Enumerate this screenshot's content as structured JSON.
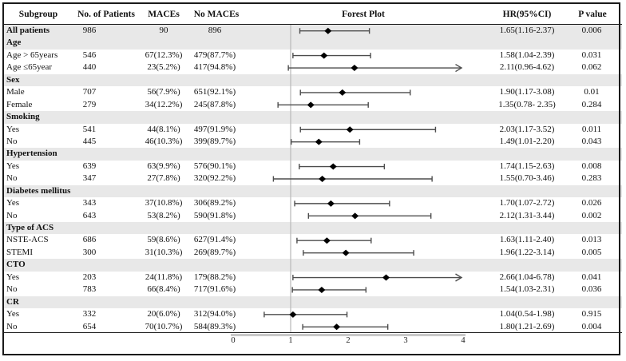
{
  "title_row": {
    "subgroup": "Subgroup",
    "patients": "No. of Patients",
    "maces": "MACEs",
    "no_maces": "No MACEs",
    "forest": "Forest Plot",
    "hr": "HR(95%CI)",
    "p": "P value"
  },
  "colors": {
    "shaded_row": "#e8e8e8",
    "whisker": "#4d4d4d",
    "marker": "#000000",
    "reference_line": "#b8b8b8",
    "axis_line": "#c9c9c9",
    "border": "#1a1a1a"
  },
  "chart_data": {
    "type": "forest",
    "title": "Forest Plot",
    "x_axis": {
      "ticks": [
        "0",
        "1",
        "2",
        "3",
        "4"
      ],
      "range": [
        0,
        4
      ],
      "reference_value": 1,
      "grid": false
    },
    "rows": [
      {
        "category": false,
        "shaded": true,
        "bold": true,
        "label": "All patients",
        "patients": "986",
        "maces": "90",
        "no_maces": "896",
        "hr_text": "1.65(1.16-2.37)",
        "p": "0.006",
        "est": 1.65,
        "lo": 1.16,
        "hi": 2.37,
        "arrow": false
      },
      {
        "category": true,
        "shaded": true,
        "bold": true,
        "label": "Age"
      },
      {
        "category": false,
        "shaded": false,
        "bold": false,
        "label": "Age > 65years",
        "patients": "546",
        "maces": "67(12.3%)",
        "no_maces": "479(87.7%)",
        "hr_text": "1.58(1.04-2.39)",
        "p": "0.031",
        "est": 1.58,
        "lo": 1.04,
        "hi": 2.39,
        "arrow": false
      },
      {
        "category": false,
        "shaded": false,
        "bold": false,
        "label": "Age ≤65year",
        "patients": "440",
        "maces": "23(5.2%)",
        "no_maces": "417(94.8%)",
        "hr_text": "2.11(0.96-4.62)",
        "p": "0.062",
        "est": 2.11,
        "lo": 0.96,
        "hi": 4.62,
        "arrow": true
      },
      {
        "category": true,
        "shaded": true,
        "bold": true,
        "label": "Sex"
      },
      {
        "category": false,
        "shaded": false,
        "bold": false,
        "label": "Male",
        "patients": "707",
        "maces": "56(7.9%)",
        "no_maces": "651(92.1%)",
        "hr_text": "1.90(1.17-3.08)",
        "p": "0.01",
        "est": 1.9,
        "lo": 1.17,
        "hi": 3.08,
        "arrow": false
      },
      {
        "category": false,
        "shaded": false,
        "bold": false,
        "label": "Female",
        "patients": "279",
        "maces": "34(12.2%)",
        "no_maces": "245(87.8%)",
        "hr_text": "1.35(0.78- 2.35)",
        "p": "0.284",
        "est": 1.35,
        "lo": 0.78,
        "hi": 2.35,
        "arrow": false
      },
      {
        "category": true,
        "shaded": true,
        "bold": true,
        "label": "Smoking"
      },
      {
        "category": false,
        "shaded": false,
        "bold": false,
        "label": "Yes",
        "patients": "541",
        "maces": "44(8.1%)",
        "no_maces": "497(91.9%)",
        "hr_text": "2.03(1.17-3.52)",
        "p": "0.011",
        "est": 2.03,
        "lo": 1.17,
        "hi": 3.52,
        "arrow": false
      },
      {
        "category": false,
        "shaded": false,
        "bold": false,
        "label": "No",
        "patients": "445",
        "maces": "46(10.3%)",
        "no_maces": "399(89.7%)",
        "hr_text": "1.49(1.01-2.20)",
        "p": "0.043",
        "est": 1.49,
        "lo": 1.01,
        "hi": 2.2,
        "arrow": false
      },
      {
        "category": true,
        "shaded": true,
        "bold": true,
        "label": "Hypertension"
      },
      {
        "category": false,
        "shaded": false,
        "bold": false,
        "label": "Yes",
        "patients": "639",
        "maces": "63(9.9%)",
        "no_maces": "576(90.1%)",
        "hr_text": "1.74(1.15-2.63)",
        "p": "0.008",
        "est": 1.74,
        "lo": 1.15,
        "hi": 2.63,
        "arrow": false
      },
      {
        "category": false,
        "shaded": false,
        "bold": false,
        "label": "No",
        "patients": "347",
        "maces": "27(7.8%)",
        "no_maces": "320(92.2%)",
        "hr_text": "1.55(0.70-3.46)",
        "p": "0.283",
        "est": 1.55,
        "lo": 0.7,
        "hi": 3.46,
        "arrow": false
      },
      {
        "category": true,
        "shaded": true,
        "bold": true,
        "label": "Diabetes mellitus"
      },
      {
        "category": false,
        "shaded": false,
        "bold": false,
        "label": "Yes",
        "patients": "343",
        "maces": "37(10.8%)",
        "no_maces": "306(89.2%)",
        "hr_text": "1.70(1.07-2.72)",
        "p": "0.026",
        "est": 1.7,
        "lo": 1.07,
        "hi": 2.72,
        "arrow": false
      },
      {
        "category": false,
        "shaded": false,
        "bold": false,
        "label": "No",
        "patients": "643",
        "maces": "53(8.2%)",
        "no_maces": "590(91.8%)",
        "hr_text": "2.12(1.31-3.44)",
        "p": "0.002",
        "est": 2.12,
        "lo": 1.31,
        "hi": 3.44,
        "arrow": false
      },
      {
        "category": true,
        "shaded": true,
        "bold": true,
        "label": "Type of ACS"
      },
      {
        "category": false,
        "shaded": false,
        "bold": false,
        "label": "NSTE-ACS",
        "patients": "686",
        "maces": "59(8.6%)",
        "no_maces": "627(91.4%)",
        "hr_text": "1.63(1.11-2.40)",
        "p": "0.013",
        "est": 1.63,
        "lo": 1.11,
        "hi": 2.4,
        "arrow": false
      },
      {
        "category": false,
        "shaded": false,
        "bold": false,
        "label": "STEMI",
        "patients": "300",
        "maces": "31(10.3%)",
        "no_maces": "269(89.7%)",
        "hr_text": "1.96(1.22-3.14)",
        "p": "0.005",
        "est": 1.96,
        "lo": 1.22,
        "hi": 3.14,
        "arrow": false
      },
      {
        "category": true,
        "shaded": true,
        "bold": true,
        "label": "CTO"
      },
      {
        "category": false,
        "shaded": false,
        "bold": false,
        "label": "Yes",
        "patients": "203",
        "maces": "24(11.8%)",
        "no_maces": "179(88.2%)",
        "hr_text": "2.66(1.04-6.78)",
        "p": "0.041",
        "est": 2.66,
        "lo": 1.04,
        "hi": 6.78,
        "arrow": true
      },
      {
        "category": false,
        "shaded": false,
        "bold": false,
        "label": "No",
        "patients": "783",
        "maces": "66(8.4%)",
        "no_maces": "717(91.6%)",
        "hr_text": "1.54(1.03-2.31)",
        "p": "0.036",
        "est": 1.54,
        "lo": 1.03,
        "hi": 2.31,
        "arrow": false
      },
      {
        "category": true,
        "shaded": true,
        "bold": true,
        "label": "CR"
      },
      {
        "category": false,
        "shaded": false,
        "bold": false,
        "label": "Yes",
        "patients": "332",
        "maces": "20(6.0%)",
        "no_maces": "312(94.0%)",
        "hr_text": "1.04(0.54-1.98)",
        "p": "0.915",
        "est": 1.04,
        "lo": 0.54,
        "hi": 1.98,
        "arrow": false
      },
      {
        "category": false,
        "shaded": false,
        "bold": false,
        "label": "No",
        "patients": "654",
        "maces": "70(10.7%)",
        "no_maces": "584(89.3%)",
        "hr_text": "1.80(1.21-2.69)",
        "p": "0.004",
        "est": 1.8,
        "lo": 1.21,
        "hi": 2.69,
        "arrow": false
      }
    ]
  }
}
